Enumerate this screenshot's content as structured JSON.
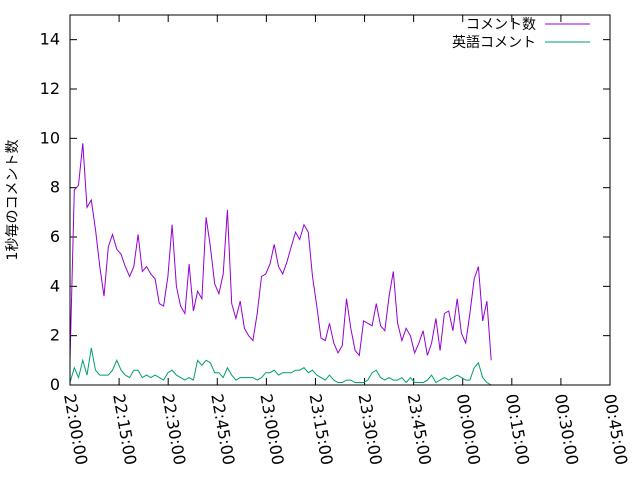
{
  "chart_data": {
    "type": "line",
    "ylabel": "1秒毎のコメント数",
    "xlabel": "",
    "ylim": [
      0,
      15
    ],
    "xlim": [
      "22:00:00",
      "00:45:00"
    ],
    "yticks": [
      "0",
      "2",
      "4",
      "6",
      "8",
      "10",
      "12",
      "14"
    ],
    "xticks": [
      "22:00:00",
      "22:15:00",
      "22:30:00",
      "22:45:00",
      "23:00:00",
      "23:15:00",
      "23:30:00",
      "23:45:00",
      "00:00:00",
      "00:15:00",
      "00:30:00",
      "00:45:00"
    ],
    "grid": false,
    "legend_position": "top-right",
    "series": [
      {
        "name": "コメント数",
        "color": "#9400d3",
        "points": [
          [
            "22:00:00",
            1.0
          ],
          [
            "22:01:18",
            7.9
          ],
          [
            "22:02:36",
            8.1
          ],
          [
            "22:03:54",
            9.8
          ],
          [
            "22:05:12",
            7.2
          ],
          [
            "22:06:30",
            7.5
          ],
          [
            "22:07:48",
            6.3
          ],
          [
            "22:09:06",
            4.8
          ],
          [
            "22:10:24",
            3.6
          ],
          [
            "22:11:42",
            5.6
          ],
          [
            "22:13:00",
            6.1
          ],
          [
            "22:14:18",
            5.5
          ],
          [
            "22:15:36",
            5.3
          ],
          [
            "22:16:54",
            4.8
          ],
          [
            "22:18:12",
            4.4
          ],
          [
            "22:19:30",
            4.8
          ],
          [
            "22:20:48",
            6.1
          ],
          [
            "22:22:06",
            4.6
          ],
          [
            "22:23:24",
            4.8
          ],
          [
            "22:24:42",
            4.5
          ],
          [
            "22:26:00",
            4.3
          ],
          [
            "22:27:18",
            3.3
          ],
          [
            "22:28:36",
            3.2
          ],
          [
            "22:29:54",
            4.4
          ],
          [
            "22:31:12",
            6.5
          ],
          [
            "22:32:30",
            4.0
          ],
          [
            "22:33:48",
            3.2
          ],
          [
            "22:35:06",
            2.9
          ],
          [
            "22:36:24",
            4.9
          ],
          [
            "22:37:42",
            3.0
          ],
          [
            "22:39:00",
            3.8
          ],
          [
            "22:40:18",
            3.5
          ],
          [
            "22:41:36",
            6.8
          ],
          [
            "22:42:54",
            5.6
          ],
          [
            "22:44:12",
            4.1
          ],
          [
            "22:45:30",
            3.7
          ],
          [
            "22:46:48",
            4.5
          ],
          [
            "22:48:06",
            7.1
          ],
          [
            "22:49:24",
            3.3
          ],
          [
            "22:50:42",
            2.7
          ],
          [
            "22:52:00",
            3.4
          ],
          [
            "22:53:18",
            2.3
          ],
          [
            "22:54:36",
            2.0
          ],
          [
            "22:55:54",
            1.8
          ],
          [
            "22:57:12",
            2.9
          ],
          [
            "22:58:30",
            4.4
          ],
          [
            "22:59:48",
            4.5
          ],
          [
            "23:01:06",
            4.9
          ],
          [
            "23:02:24",
            5.7
          ],
          [
            "23:03:42",
            4.8
          ],
          [
            "23:05:00",
            4.5
          ],
          [
            "23:06:18",
            5.0
          ],
          [
            "23:07:36",
            5.6
          ],
          [
            "23:08:54",
            6.2
          ],
          [
            "23:10:12",
            5.9
          ],
          [
            "23:11:30",
            6.5
          ],
          [
            "23:12:48",
            6.2
          ],
          [
            "23:14:06",
            4.4
          ],
          [
            "23:15:24",
            3.2
          ],
          [
            "23:16:42",
            1.9
          ],
          [
            "23:18:00",
            1.8
          ],
          [
            "23:19:18",
            2.5
          ],
          [
            "23:20:36",
            1.7
          ],
          [
            "23:21:54",
            1.3
          ],
          [
            "23:23:12",
            1.6
          ],
          [
            "23:24:30",
            3.5
          ],
          [
            "23:25:48",
            2.3
          ],
          [
            "23:27:06",
            1.4
          ],
          [
            "23:28:24",
            1.2
          ],
          [
            "23:29:42",
            2.6
          ],
          [
            "23:31:00",
            2.5
          ],
          [
            "23:32:18",
            2.4
          ],
          [
            "23:33:36",
            3.3
          ],
          [
            "23:34:54",
            2.4
          ],
          [
            "23:36:12",
            2.2
          ],
          [
            "23:37:30",
            3.6
          ],
          [
            "23:38:48",
            4.6
          ],
          [
            "23:40:06",
            2.5
          ],
          [
            "23:41:24",
            1.8
          ],
          [
            "23:42:42",
            2.3
          ],
          [
            "23:44:00",
            2.0
          ],
          [
            "23:45:18",
            1.3
          ],
          [
            "23:46:36",
            1.7
          ],
          [
            "23:47:54",
            2.2
          ],
          [
            "23:49:12",
            1.2
          ],
          [
            "23:50:30",
            1.7
          ],
          [
            "23:51:48",
            2.7
          ],
          [
            "23:53:06",
            1.4
          ],
          [
            "23:54:24",
            2.9
          ],
          [
            "23:55:42",
            3.0
          ],
          [
            "23:57:00",
            2.2
          ],
          [
            "23:58:18",
            3.5
          ],
          [
            "23:59:36",
            2.1
          ],
          [
            "00:00:54",
            1.7
          ],
          [
            "00:02:12",
            2.9
          ],
          [
            "00:03:30",
            4.3
          ],
          [
            "00:04:48",
            4.8
          ],
          [
            "00:06:06",
            2.6
          ],
          [
            "00:07:24",
            3.4
          ],
          [
            "00:08:42",
            1.0
          ]
        ]
      },
      {
        "name": "英語コメント",
        "color": "#009e73",
        "points": [
          [
            "22:00:00",
            0.1
          ],
          [
            "22:01:18",
            0.7
          ],
          [
            "22:02:36",
            0.3
          ],
          [
            "22:03:54",
            1.0
          ],
          [
            "22:05:12",
            0.4
          ],
          [
            "22:06:30",
            1.5
          ],
          [
            "22:07:48",
            0.6
          ],
          [
            "22:09:06",
            0.4
          ],
          [
            "22:10:24",
            0.4
          ],
          [
            "22:11:42",
            0.4
          ],
          [
            "22:13:00",
            0.6
          ],
          [
            "22:14:18",
            1.0
          ],
          [
            "22:15:36",
            0.6
          ],
          [
            "22:16:54",
            0.4
          ],
          [
            "22:18:12",
            0.3
          ],
          [
            "22:19:30",
            0.6
          ],
          [
            "22:20:48",
            0.6
          ],
          [
            "22:22:06",
            0.3
          ],
          [
            "22:23:24",
            0.4
          ],
          [
            "22:24:42",
            0.3
          ],
          [
            "22:26:00",
            0.4
          ],
          [
            "22:27:18",
            0.3
          ],
          [
            "22:28:36",
            0.2
          ],
          [
            "22:29:54",
            0.5
          ],
          [
            "22:31:12",
            0.6
          ],
          [
            "22:32:30",
            0.4
          ],
          [
            "22:33:48",
            0.3
          ],
          [
            "22:35:06",
            0.2
          ],
          [
            "22:36:24",
            0.3
          ],
          [
            "22:37:42",
            0.2
          ],
          [
            "22:39:00",
            1.0
          ],
          [
            "22:40:18",
            0.8
          ],
          [
            "22:41:36",
            1.0
          ],
          [
            "22:42:54",
            0.9
          ],
          [
            "22:44:12",
            0.5
          ],
          [
            "22:45:30",
            0.5
          ],
          [
            "22:46:48",
            0.3
          ],
          [
            "22:48:06",
            0.7
          ],
          [
            "22:49:24",
            0.4
          ],
          [
            "22:50:42",
            0.2
          ],
          [
            "22:52:00",
            0.3
          ],
          [
            "22:53:18",
            0.3
          ],
          [
            "22:54:36",
            0.3
          ],
          [
            "22:55:54",
            0.3
          ],
          [
            "22:57:12",
            0.2
          ],
          [
            "22:58:30",
            0.3
          ],
          [
            "22:59:48",
            0.5
          ],
          [
            "23:01:06",
            0.5
          ],
          [
            "23:02:24",
            0.6
          ],
          [
            "23:03:42",
            0.4
          ],
          [
            "23:05:00",
            0.5
          ],
          [
            "23:06:18",
            0.5
          ],
          [
            "23:07:36",
            0.5
          ],
          [
            "23:08:54",
            0.6
          ],
          [
            "23:10:12",
            0.6
          ],
          [
            "23:11:30",
            0.7
          ],
          [
            "23:12:48",
            0.5
          ],
          [
            "23:14:06",
            0.6
          ],
          [
            "23:15:24",
            0.4
          ],
          [
            "23:16:42",
            0.3
          ],
          [
            "23:18:00",
            0.2
          ],
          [
            "23:19:18",
            0.4
          ],
          [
            "23:20:36",
            0.2
          ],
          [
            "23:21:54",
            0.1
          ],
          [
            "23:23:12",
            0.1
          ],
          [
            "23:24:30",
            0.2
          ],
          [
            "23:25:48",
            0.2
          ],
          [
            "23:27:06",
            0.1
          ],
          [
            "23:28:24",
            0.1
          ],
          [
            "23:29:42",
            0.1
          ],
          [
            "23:31:00",
            0.2
          ],
          [
            "23:32:18",
            0.5
          ],
          [
            "23:33:36",
            0.6
          ],
          [
            "23:34:54",
            0.3
          ],
          [
            "23:36:12",
            0.2
          ],
          [
            "23:37:30",
            0.3
          ],
          [
            "23:38:48",
            0.2
          ],
          [
            "23:40:06",
            0.2
          ],
          [
            "23:41:24",
            0.3
          ],
          [
            "23:42:42",
            0.1
          ],
          [
            "23:44:00",
            0.3
          ],
          [
            "23:45:18",
            0.1
          ],
          [
            "23:46:36",
            0.1
          ],
          [
            "23:47:54",
            0.1
          ],
          [
            "23:49:12",
            0.2
          ],
          [
            "23:50:30",
            0.4
          ],
          [
            "23:51:48",
            0.1
          ],
          [
            "23:53:06",
            0.2
          ],
          [
            "23:54:24",
            0.3
          ],
          [
            "23:55:42",
            0.2
          ],
          [
            "23:57:00",
            0.3
          ],
          [
            "23:58:18",
            0.4
          ],
          [
            "23:59:36",
            0.3
          ],
          [
            "00:00:54",
            0.2
          ],
          [
            "00:02:12",
            0.2
          ],
          [
            "00:03:30",
            0.7
          ],
          [
            "00:04:48",
            0.9
          ],
          [
            "00:06:06",
            0.3
          ],
          [
            "00:07:24",
            0.1
          ],
          [
            "00:08:42",
            0.0
          ]
        ]
      }
    ]
  }
}
